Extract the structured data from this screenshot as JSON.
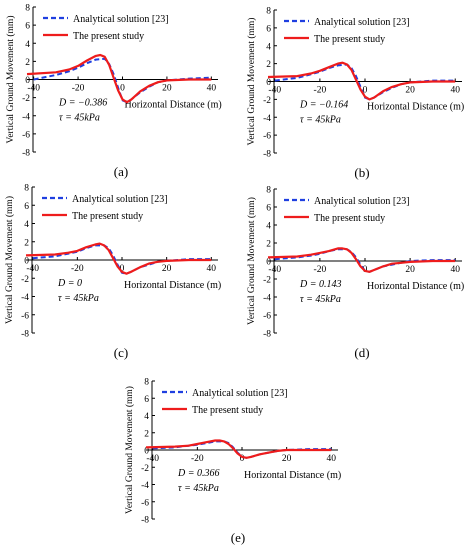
{
  "figure": {
    "legend": {
      "analytical": "Analytical solution [23]",
      "present": "The present study"
    },
    "colors": {
      "analytical": "#1f3fe0",
      "present": "#ee1c1c",
      "axis": "#000000"
    }
  },
  "chart_data": [
    {
      "panel": "(a)",
      "type": "line",
      "ylabel": "Vertical Ground Movement (mm)",
      "xlabel": "Horizontal Distance (m)",
      "xlim": [
        -43,
        43
      ],
      "ylim": [
        -8,
        8
      ],
      "xticks": [
        -40,
        -20,
        0,
        20,
        40
      ],
      "yticks": [
        -8,
        -6,
        -4,
        -2,
        0,
        2,
        4,
        6,
        8
      ],
      "legend_position": "top-left",
      "annotation": [
        "D = −0.386",
        "τ = 45kPa"
      ],
      "series": [
        {
          "name": "Analytical solution [23]",
          "style": "dashed",
          "color": "#1f3fe0",
          "x": [
            -40,
            -30,
            -24,
            -20,
            -16,
            -12,
            -8,
            -6,
            -4,
            -2,
            0,
            2,
            4,
            8,
            12,
            16,
            20,
            30,
            40
          ],
          "y": [
            0.0,
            0.5,
            0.9,
            1.3,
            1.8,
            2.2,
            2.3,
            1.7,
            0.6,
            -0.9,
            -2.3,
            -2.5,
            -2.2,
            -1.4,
            -0.8,
            -0.3,
            -0.1,
            0.1,
            0.2
          ]
        },
        {
          "name": "The present study",
          "style": "solid",
          "color": "#ee1c1c",
          "x": [
            -43,
            -30,
            -24,
            -20,
            -16,
            -12,
            -10,
            -8,
            -6,
            -4,
            -2,
            0,
            2,
            4,
            8,
            12,
            16,
            20,
            30,
            40
          ],
          "y": [
            0.6,
            0.8,
            1.1,
            1.5,
            2.1,
            2.6,
            2.7,
            2.5,
            1.6,
            0.2,
            -1.2,
            -2.2,
            -2.5,
            -2.2,
            -1.3,
            -0.7,
            -0.3,
            -0.1,
            0.0,
            0.0
          ]
        }
      ]
    },
    {
      "panel": "(b)",
      "type": "line",
      "ylabel": "Vertical Ground Movement (mm)",
      "xlabel": "Horizontal Distance (m)",
      "xlim": [
        -43,
        43
      ],
      "ylim": [
        -8,
        8
      ],
      "xticks": [
        -40,
        -20,
        0,
        20,
        40
      ],
      "yticks": [
        -8,
        -6,
        -4,
        -2,
        0,
        2,
        4,
        6,
        8
      ],
      "legend_position": "top-left",
      "annotation": [
        "D = −0.164",
        "τ = 45kPa"
      ],
      "series": [
        {
          "name": "Analytical solution [23]",
          "style": "dashed",
          "color": "#1f3fe0",
          "x": [
            -40,
            -30,
            -24,
            -20,
            -16,
            -12,
            -8,
            -6,
            -4,
            -2,
            0,
            2,
            4,
            8,
            12,
            16,
            20,
            30,
            40
          ],
          "y": [
            0.1,
            0.4,
            0.8,
            1.1,
            1.5,
            1.8,
            1.9,
            1.5,
            0.6,
            -0.6,
            -1.8,
            -2.0,
            -1.8,
            -1.2,
            -0.7,
            -0.3,
            -0.1,
            0.1,
            0.1
          ]
        },
        {
          "name": "The present study",
          "style": "solid",
          "color": "#ee1c1c",
          "x": [
            -43,
            -30,
            -24,
            -20,
            -16,
            -12,
            -10,
            -8,
            -6,
            -4,
            -2,
            0,
            2,
            4,
            8,
            12,
            16,
            20,
            30,
            40
          ],
          "y": [
            0.5,
            0.6,
            0.9,
            1.2,
            1.6,
            2.0,
            2.1,
            1.9,
            1.3,
            0.2,
            -0.9,
            -1.7,
            -2.0,
            -1.8,
            -1.1,
            -0.6,
            -0.3,
            -0.1,
            0.0,
            0.0
          ]
        }
      ]
    },
    {
      "panel": "(c)",
      "type": "line",
      "ylabel": "Vertical Ground Movement (mm)",
      "xlabel": "Horizontal Distance (m)",
      "xlim": [
        -43,
        43
      ],
      "ylim": [
        -8,
        8
      ],
      "xticks": [
        -40,
        -20,
        0,
        20,
        40
      ],
      "yticks": [
        -8,
        -6,
        -4,
        -2,
        0,
        2,
        4,
        6,
        8
      ],
      "legend_position": "top-left",
      "annotation": [
        "D = 0",
        "τ = 45kPa"
      ],
      "series": [
        {
          "name": "Analytical solution [23]",
          "style": "dashed",
          "color": "#1f3fe0",
          "x": [
            -40,
            -30,
            -24,
            -20,
            -16,
            -12,
            -8,
            -6,
            -4,
            -2,
            0,
            2,
            4,
            8,
            12,
            16,
            20,
            30,
            40
          ],
          "y": [
            0.2,
            0.4,
            0.7,
            0.9,
            1.3,
            1.6,
            1.6,
            1.3,
            0.5,
            -0.5,
            -1.4,
            -1.5,
            -1.3,
            -0.8,
            -0.5,
            -0.2,
            -0.1,
            0.1,
            0.1
          ]
        },
        {
          "name": "The present study",
          "style": "solid",
          "color": "#ee1c1c",
          "x": [
            -43,
            -30,
            -24,
            -20,
            -16,
            -12,
            -10,
            -8,
            -6,
            -4,
            -2,
            0,
            2,
            4,
            8,
            12,
            16,
            20,
            30,
            40
          ],
          "y": [
            0.5,
            0.6,
            0.8,
            1.0,
            1.4,
            1.7,
            1.8,
            1.6,
            1.1,
            0.2,
            -0.7,
            -1.3,
            -1.5,
            -1.3,
            -0.8,
            -0.4,
            -0.2,
            -0.1,
            0.0,
            0.0
          ]
        }
      ]
    },
    {
      "panel": "(d)",
      "type": "line",
      "ylabel": "Vertical Ground Movement (mm)",
      "xlabel": "Horizontal Distance (m)",
      "xlim": [
        -43,
        43
      ],
      "ylim": [
        -8,
        8
      ],
      "xticks": [
        -40,
        -20,
        0,
        20,
        40
      ],
      "yticks": [
        -8,
        -6,
        -4,
        -2,
        0,
        2,
        4,
        6,
        8
      ],
      "legend_position": "top-left",
      "annotation": [
        "D = 0.143",
        "τ = 45kPa"
      ],
      "series": [
        {
          "name": "Analytical solution [23]",
          "style": "dashed",
          "color": "#1f3fe0",
          "x": [
            -40,
            -30,
            -24,
            -20,
            -16,
            -12,
            -8,
            -6,
            -4,
            -2,
            0,
            2,
            4,
            8,
            12,
            16,
            20,
            30,
            40
          ],
          "y": [
            0.2,
            0.4,
            0.6,
            0.8,
            1.1,
            1.3,
            1.3,
            1.0,
            0.4,
            -0.4,
            -1.1,
            -1.2,
            -1.0,
            -0.6,
            -0.4,
            -0.2,
            0.0,
            0.1,
            0.1
          ]
        },
        {
          "name": "The present study",
          "style": "solid",
          "color": "#ee1c1c",
          "x": [
            -43,
            -30,
            -24,
            -20,
            -16,
            -12,
            -10,
            -8,
            -6,
            -4,
            -2,
            0,
            2,
            4,
            8,
            12,
            16,
            20,
            30,
            40
          ],
          "y": [
            0.4,
            0.5,
            0.7,
            0.9,
            1.1,
            1.4,
            1.4,
            1.3,
            0.9,
            0.2,
            -0.6,
            -1.1,
            -1.2,
            -1.0,
            -0.6,
            -0.3,
            -0.2,
            -0.1,
            0.0,
            0.0
          ]
        }
      ]
    },
    {
      "panel": "(e)",
      "type": "line",
      "ylabel": "Vertical Ground Movement (mm)",
      "xlabel": "Horizontal Distance (m)",
      "xlim": [
        -43,
        43
      ],
      "ylim": [
        -8,
        8
      ],
      "xticks": [
        -40,
        -20,
        0,
        20,
        40
      ],
      "yticks": [
        -8,
        -6,
        -4,
        -2,
        0,
        2,
        4,
        6,
        8
      ],
      "legend_position": "top-left",
      "annotation": [
        "D = 0.366",
        "τ = 45kPa"
      ],
      "series": [
        {
          "name": "Analytical solution [23]",
          "style": "dashed",
          "color": "#1f3fe0",
          "x": [
            -40,
            -30,
            -24,
            -20,
            -16,
            -12,
            -8,
            -6,
            -4,
            -2,
            0,
            2,
            4,
            8,
            12,
            16,
            20,
            30,
            40
          ],
          "y": [
            0.2,
            0.3,
            0.5,
            0.6,
            0.8,
            1.0,
            1.0,
            0.8,
            0.3,
            -0.3,
            -0.8,
            -0.9,
            -0.8,
            -0.5,
            -0.3,
            -0.1,
            0.0,
            0.1,
            0.1
          ]
        },
        {
          "name": "The present study",
          "style": "solid",
          "color": "#ee1c1c",
          "x": [
            -43,
            -30,
            -24,
            -20,
            -16,
            -12,
            -10,
            -8,
            -6,
            -4,
            -2,
            0,
            2,
            4,
            8,
            12,
            16,
            20,
            30,
            40
          ],
          "y": [
            0.3,
            0.4,
            0.5,
            0.7,
            0.9,
            1.1,
            1.1,
            1.0,
            0.7,
            0.2,
            -0.4,
            -0.8,
            -0.9,
            -0.8,
            -0.5,
            -0.3,
            -0.1,
            0.0,
            0.0,
            0.0
          ]
        }
      ]
    }
  ]
}
